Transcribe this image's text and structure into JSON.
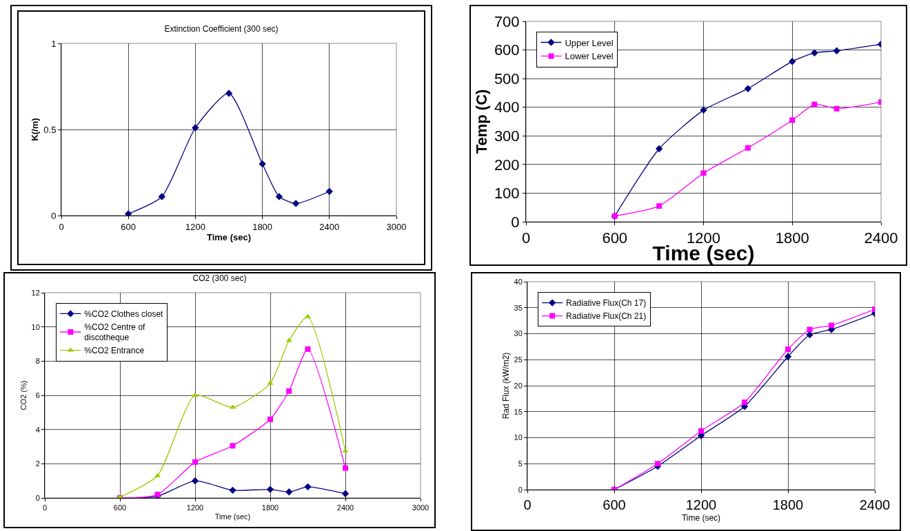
{
  "chart_data": [
    {
      "type": "line",
      "title": "Extinction Coefficient (300 sec)",
      "xlabel": "Time (sec)",
      "ylabel": "K(/m)",
      "x": [
        600,
        900,
        1200,
        1500,
        1800,
        1950,
        2100,
        2400
      ],
      "series": [
        {
          "color": "#000080",
          "marker": "diamond",
          "values": [
            0.01,
            0.11,
            0.51,
            0.71,
            0.3,
            0.11,
            0.07,
            0.14
          ]
        }
      ],
      "xlim": [
        0,
        3000
      ],
      "xticks": [
        0,
        600,
        1200,
        1800,
        2400,
        3000
      ],
      "ylim": [
        0,
        1
      ],
      "yticks": [
        0,
        0.5,
        1
      ],
      "grid": true,
      "legend": false,
      "line_style": "solid"
    },
    {
      "type": "line",
      "xlabel": "Time (sec)",
      "ylabel": "Temp (C)",
      "x": [
        600,
        900,
        1200,
        1500,
        1800,
        1950,
        2100,
        2400
      ],
      "series": [
        {
          "name": "Upper Level",
          "color": "#000080",
          "marker": "diamond",
          "values": [
            20,
            255,
            390,
            465,
            560,
            590,
            597,
            620
          ]
        },
        {
          "name": "Lower Level",
          "color": "#ff00ff",
          "marker": "square",
          "values": [
            20,
            55,
            170,
            258,
            355,
            410,
            395,
            418
          ]
        }
      ],
      "xlim": [
        0,
        2400
      ],
      "xticks": [
        0,
        600,
        1200,
        1800,
        2400
      ],
      "ylim": [
        0,
        700
      ],
      "yticks": [
        0,
        100,
        200,
        300,
        400,
        500,
        600,
        700
      ],
      "grid": true,
      "legend": "top left",
      "line_style": "solid"
    },
    {
      "type": "line",
      "title": "CO2 (300 sec)",
      "xlabel": "Time (sec)",
      "ylabel": "CO2 (%)",
      "x": [
        600,
        900,
        1200,
        1500,
        1800,
        1950,
        2100,
        2400
      ],
      "series": [
        {
          "name": "%CO2 Clothes closet",
          "color": "#000080",
          "marker": "diamond",
          "values": [
            0,
            0.1,
            1.0,
            0.45,
            0.5,
            0.35,
            0.65,
            0.25
          ]
        },
        {
          "name": "%CO2 Centre of discotheque",
          "color": "#ff00ff",
          "marker": "square",
          "values": [
            0,
            0.2,
            2.1,
            3.05,
            4.6,
            6.25,
            8.7,
            1.75
          ]
        },
        {
          "name": "%CO2 Entrance",
          "color": "#99cc00",
          "marker": "triangle",
          "values": [
            0.05,
            1.3,
            6.0,
            5.3,
            6.7,
            9.2,
            10.6,
            2.75
          ]
        }
      ],
      "xlim": [
        0,
        3000
      ],
      "xticks": [
        0,
        600,
        1200,
        1800,
        2400,
        3000
      ],
      "ylim": [
        0,
        12
      ],
      "yticks": [
        0,
        2,
        4,
        6,
        8,
        10,
        12
      ],
      "grid": true,
      "legend": "top left",
      "line_style": "solid"
    },
    {
      "type": "line",
      "xlabel": "Time (sec)",
      "ylabel": "Rad Flux (kW/m2)",
      "x": [
        600,
        900,
        1200,
        1500,
        1800,
        1950,
        2100,
        2400
      ],
      "series": [
        {
          "name": "Radiative Flux(Ch 17)",
          "color": "#000080",
          "marker": "diamond",
          "values": [
            0,
            4.5,
            10.4,
            16.0,
            25.6,
            29.8,
            30.8,
            33.9
          ]
        },
        {
          "name": "Radiative Flux(Ch 21)",
          "color": "#ff00ff",
          "marker": "square",
          "values": [
            0,
            5.0,
            11.3,
            16.8,
            27.0,
            30.8,
            31.6,
            34.7
          ]
        }
      ],
      "xlim": [
        0,
        2400
      ],
      "xticks": [
        0,
        600,
        1200,
        1800,
        2400
      ],
      "ylim": [
        0,
        40
      ],
      "yticks": [
        0,
        5,
        10,
        15,
        20,
        25,
        30,
        35,
        40
      ],
      "grid": true,
      "legend": "top left",
      "line_style": "solid"
    }
  ]
}
